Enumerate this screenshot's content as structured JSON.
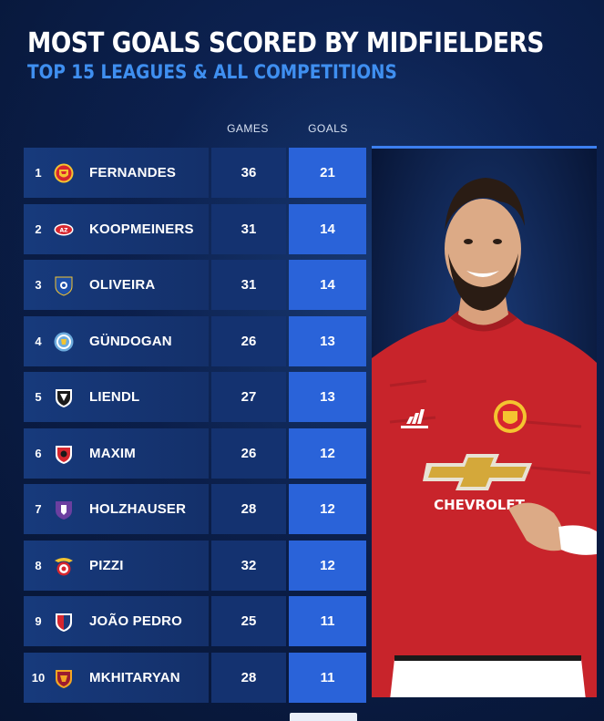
{
  "header": {
    "title": "MOST GOALS SCORED BY MIDFIELDERS",
    "subtitle": "TOP 15 LEAGUES & ALL COMPETITIONS"
  },
  "columns": {
    "games": "GAMES",
    "goals": "GOALS"
  },
  "rows": [
    {
      "rank": "1",
      "name": "FERNANDES",
      "games": "36",
      "goals": "21",
      "crest": "manchester-united-crest-icon"
    },
    {
      "rank": "2",
      "name": "KOOPMEINERS",
      "games": "31",
      "goals": "14",
      "crest": "az-alkmaar-crest-icon"
    },
    {
      "rank": "3",
      "name": "OLIVEIRA",
      "games": "31",
      "goals": "14",
      "crest": "fc-porto-crest-icon"
    },
    {
      "rank": "4",
      "name": "GÜNDOGAN",
      "games": "26",
      "goals": "13",
      "crest": "manchester-city-crest-icon"
    },
    {
      "rank": "5",
      "name": "LIENDL",
      "games": "27",
      "goals": "13",
      "crest": "wolfsberger-crest-icon"
    },
    {
      "rank": "6",
      "name": "MAXIM",
      "games": "26",
      "goals": "12",
      "crest": "gaziantep-crest-icon"
    },
    {
      "rank": "7",
      "name": "HOLZHAUSER",
      "games": "28",
      "goals": "12",
      "crest": "beerschot-crest-icon"
    },
    {
      "rank": "8",
      "name": "PIZZI",
      "games": "32",
      "goals": "12",
      "crest": "benfica-crest-icon"
    },
    {
      "rank": "9",
      "name": "JOÃO PEDRO",
      "games": "25",
      "goals": "11",
      "crest": "cagliari-crest-icon"
    },
    {
      "rank": "10",
      "name": "MKHITARYAN",
      "games": "28",
      "goals": "11",
      "crest": "as-roma-crest-icon"
    }
  ],
  "photo": {
    "shirt_sponsor": "CHEVROLET",
    "colors": {
      "shirt": "#c8242b",
      "accent": "#2a63d9"
    }
  }
}
